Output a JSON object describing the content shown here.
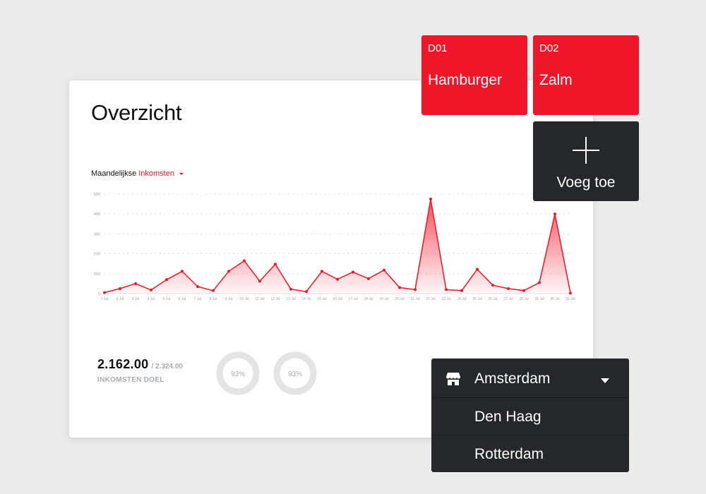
{
  "overview": {
    "title": "Overzicht",
    "chart_prefix": "Maandelijkse",
    "chart_metric": "Inkomsten"
  },
  "chart_data": {
    "type": "area",
    "ylim": [
      0,
      500
    ],
    "y_ticks": [
      "0",
      "100",
      "200",
      "300",
      "400",
      "500"
    ],
    "categories": [
      "1 Jul",
      "2 Jul",
      "3 Jul",
      "4 Jul",
      "5 Jul",
      "6 Jul",
      "7 Jul",
      "8 Jul",
      "9 Jul",
      "10 Jul",
      "11 Jul",
      "12 Jul",
      "13 Jul",
      "14 Jul",
      "15 Jul",
      "16 Jul",
      "17 Jul",
      "18 Jul",
      "19 Jul",
      "20 Jul",
      "21 Jul",
      "22 Jul",
      "23 Jul",
      "24 Jul",
      "25 Jul",
      "26 Jul",
      "27 Jul",
      "28 Jul",
      "29 Jul",
      "30 Jul",
      "31 Jul"
    ],
    "values": [
      5,
      25,
      50,
      18,
      70,
      112,
      35,
      15,
      112,
      165,
      62,
      148,
      22,
      10,
      112,
      72,
      108,
      75,
      118,
      30,
      20,
      475,
      20,
      15,
      122,
      42,
      25,
      15,
      55,
      400,
      2
    ],
    "color": "#f0162a",
    "grid": "dotted horizontal"
  },
  "stats": {
    "value": "2.162.00",
    "target": "/ 2.324.00",
    "label": "INKOMSTEN DOEL",
    "donuts": [
      {
        "label": "93%",
        "percent": 93
      },
      {
        "label": "93%",
        "percent": 93
      }
    ]
  },
  "dishes": [
    {
      "code": "D01",
      "name": "Hamburger"
    },
    {
      "code": "D02",
      "name": "Zalm"
    }
  ],
  "add_tile": {
    "label": "Voeg toe",
    "icon": "plus-icon"
  },
  "locations": {
    "selected": "Amsterdam",
    "icon": "store-icon",
    "options": [
      "Den Haag",
      "Rotterdam"
    ]
  },
  "colors": {
    "accent": "#f0162a",
    "dark": "#26272b",
    "background": "#ebebeb"
  }
}
